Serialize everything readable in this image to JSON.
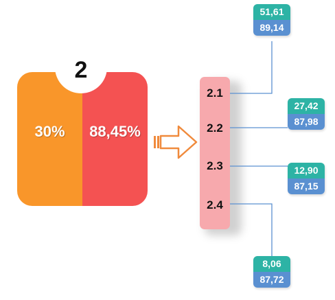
{
  "section": {
    "number": "2",
    "left_value": "30%",
    "right_value": "88,45%",
    "colors": {
      "left": "#f9962a",
      "right": "#f45252"
    }
  },
  "subsections": [
    {
      "label": "2.1",
      "top_value": "51,61",
      "bottom_value": "89,14"
    },
    {
      "label": "2.2",
      "top_value": "27,42",
      "bottom_value": "87,98"
    },
    {
      "label": "2.3",
      "top_value": "12,90",
      "bottom_value": "87,15"
    },
    {
      "label": "2.4",
      "top_value": "8,06",
      "bottom_value": "87,72"
    }
  ],
  "colors": {
    "column": "#f7a9ad",
    "value_top": "#2db3a5",
    "value_bottom": "#5a90d1",
    "connector": "#5a90d1",
    "arrow": "#f08a3c"
  }
}
